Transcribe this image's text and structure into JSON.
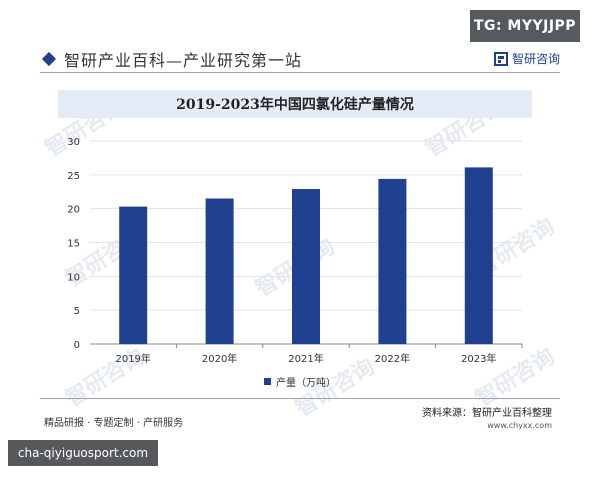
{
  "tg_badge": "TG: MYYJJPP",
  "header": {
    "title": "智研产业百科—产业研究第一站",
    "brand": "智研咨询"
  },
  "watermark_text": "智研咨询",
  "chart_data": {
    "type": "bar",
    "title": "2019-2023年中国四氯化硅产量情况",
    "categories": [
      "2019年",
      "2020年",
      "2021年",
      "2022年",
      "2023年"
    ],
    "series": [
      {
        "name": "产量（万吨）",
        "values": [
          20.3,
          21.5,
          22.9,
          24.4,
          26.1
        ]
      }
    ],
    "ylim": [
      0,
      30
    ],
    "yticks": [
      0,
      5,
      10,
      15,
      20,
      25,
      30
    ],
    "grid": true,
    "legend": "bottom",
    "bar_color": "#1f3f8f"
  },
  "footer": {
    "left": "精品研报 · 专题定制 · 产研服务",
    "source": "资料来源：智研产业百科整理",
    "url": "www.chyxx.com"
  },
  "site_badge": "cha-qiyiguosport.com"
}
